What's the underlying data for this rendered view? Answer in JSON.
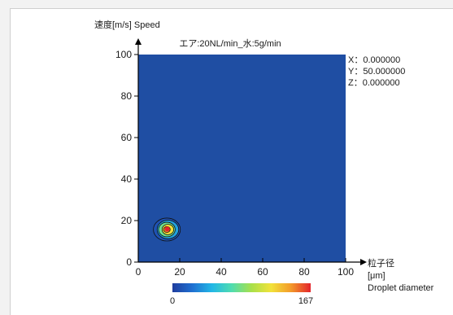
{
  "chart_data": {
    "type": "heatmap",
    "title": "エア:20NL/min_水:5g/min",
    "ylabel": "速度[m/s]  Speed",
    "xlabel_lines": [
      "粒子径",
      "[μm]",
      "Droplet diameter"
    ],
    "xlim": [
      0,
      100
    ],
    "ylim": [
      0,
      100
    ],
    "x_ticks": [
      0,
      20,
      40,
      60,
      80,
      100
    ],
    "y_ticks": [
      0,
      20,
      40,
      60,
      80,
      100
    ],
    "colorbar": {
      "min": 0,
      "max": 167
    },
    "readout": [
      "X：0.000000",
      "Y：50.000000",
      "Z：0.000000"
    ],
    "peak": {
      "x": 14,
      "y": 16,
      "value": 167
    },
    "contour_levels": [
      {
        "value": 10,
        "rx": 6.5,
        "ry": 5.5
      },
      {
        "value": 40,
        "rx": 5.2,
        "ry": 4.5
      },
      {
        "value": 80,
        "rx": 4.0,
        "ry": 3.5
      },
      {
        "value": 120,
        "rx": 2.8,
        "ry": 2.5
      },
      {
        "value": 150,
        "rx": 1.6,
        "ry": 1.4
      }
    ],
    "colors": {
      "background": "#1f4ea3",
      "scale": [
        "#1f3d9e",
        "#1f6fd1",
        "#22b7e6",
        "#4fdcb0",
        "#a8e04a",
        "#f2e23a",
        "#f39a2a",
        "#e3242b"
      ]
    }
  }
}
